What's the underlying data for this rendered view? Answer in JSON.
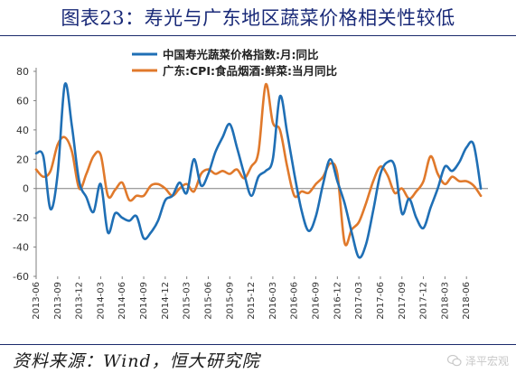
{
  "title": "图表23：寿光与广东地区蔬菜价格相关性较低",
  "source": "资料来源：Wind，恒大研究院",
  "watermark": {
    "text": "泽平宏观",
    "icon": "wechat-icon"
  },
  "chart_data": {
    "type": "line",
    "ylim": [
      -60,
      80
    ],
    "yticks": [
      80,
      60,
      40,
      20,
      0,
      -20,
      -40,
      -60
    ],
    "xlim": [
      "2013-06",
      "2018-09"
    ],
    "xticks": [
      "2013-06",
      "2013-09",
      "2013-12",
      "2014-03",
      "2014-06",
      "2014-09",
      "2014-12",
      "2015-03",
      "2015-06",
      "2015-09",
      "2015-12",
      "2016-03",
      "2016-06",
      "2016-09",
      "2016-12",
      "2017-03",
      "2017-06",
      "2017-09",
      "2017-12",
      "2018-03",
      "2018-06"
    ],
    "legend_position": "top-left",
    "series": [
      {
        "name": "中国寿光蔬菜价格指数:月:同比",
        "color": "#1f6fb5",
        "points": [
          [
            "2013-06",
            24
          ],
          [
            "2013-07",
            22
          ],
          [
            "2013-08",
            -14
          ],
          [
            "2013-09",
            10
          ],
          [
            "2013-10",
            71
          ],
          [
            "2013-11",
            42
          ],
          [
            "2013-12",
            5
          ],
          [
            "2014-01",
            -6
          ],
          [
            "2014-02",
            -16
          ],
          [
            "2014-03",
            3
          ],
          [
            "2014-04",
            -30
          ],
          [
            "2014-05",
            -17
          ],
          [
            "2014-06",
            -20
          ],
          [
            "2014-07",
            -22
          ],
          [
            "2014-08",
            -19
          ],
          [
            "2014-09",
            -34
          ],
          [
            "2014-10",
            -30
          ],
          [
            "2014-11",
            -22
          ],
          [
            "2014-12",
            -8
          ],
          [
            "2015-01",
            -5
          ],
          [
            "2015-02",
            4
          ],
          [
            "2015-03",
            -3
          ],
          [
            "2015-04",
            20
          ],
          [
            "2015-05",
            2
          ],
          [
            "2015-06",
            10
          ],
          [
            "2015-07",
            25
          ],
          [
            "2015-08",
            35
          ],
          [
            "2015-09",
            44
          ],
          [
            "2015-10",
            28
          ],
          [
            "2015-11",
            10
          ],
          [
            "2015-12",
            -5
          ],
          [
            "2016-01",
            8
          ],
          [
            "2016-02",
            12
          ],
          [
            "2016-03",
            20
          ],
          [
            "2016-04",
            63
          ],
          [
            "2016-05",
            38
          ],
          [
            "2016-06",
            10
          ],
          [
            "2016-07",
            -15
          ],
          [
            "2016-08",
            -29
          ],
          [
            "2016-09",
            -19
          ],
          [
            "2016-10",
            3
          ],
          [
            "2016-11",
            20
          ],
          [
            "2016-12",
            5
          ],
          [
            "2017-01",
            -10
          ],
          [
            "2017-02",
            -30
          ],
          [
            "2017-03",
            -47
          ],
          [
            "2017-04",
            -38
          ],
          [
            "2017-05",
            -15
          ],
          [
            "2017-06",
            10
          ],
          [
            "2017-07",
            18
          ],
          [
            "2017-08",
            15
          ],
          [
            "2017-09",
            -17
          ],
          [
            "2017-10",
            -7
          ],
          [
            "2017-11",
            -20
          ],
          [
            "2017-12",
            -27
          ],
          [
            "2018-01",
            -13
          ],
          [
            "2018-02",
            0
          ],
          [
            "2018-03",
            15
          ],
          [
            "2018-04",
            12
          ],
          [
            "2018-05",
            18
          ],
          [
            "2018-06",
            28
          ],
          [
            "2018-07",
            30
          ],
          [
            "2018-08",
            0
          ]
        ]
      },
      {
        "name": "广东:CPI:食品烟酒:鲜菜:当月同比",
        "color": "#e0792b",
        "points": [
          [
            "2013-06",
            13
          ],
          [
            "2013-07",
            8
          ],
          [
            "2013-08",
            12
          ],
          [
            "2013-09",
            30
          ],
          [
            "2013-10",
            35
          ],
          [
            "2013-11",
            25
          ],
          [
            "2013-12",
            0
          ],
          [
            "2014-01",
            10
          ],
          [
            "2014-02",
            22
          ],
          [
            "2014-03",
            23
          ],
          [
            "2014-04",
            -5
          ],
          [
            "2014-05",
            -1
          ],
          [
            "2014-06",
            4
          ],
          [
            "2014-07",
            -8
          ],
          [
            "2014-08",
            -5
          ],
          [
            "2014-09",
            -5
          ],
          [
            "2014-10",
            2
          ],
          [
            "2014-11",
            3
          ],
          [
            "2014-12",
            0
          ],
          [
            "2015-01",
            -5
          ],
          [
            "2015-02",
            0
          ],
          [
            "2015-03",
            3
          ],
          [
            "2015-04",
            -2
          ],
          [
            "2015-05",
            10
          ],
          [
            "2015-06",
            13
          ],
          [
            "2015-07",
            10
          ],
          [
            "2015-08",
            12
          ],
          [
            "2015-09",
            10
          ],
          [
            "2015-10",
            13
          ],
          [
            "2015-11",
            7
          ],
          [
            "2015-12",
            15
          ],
          [
            "2016-01",
            25
          ],
          [
            "2016-02",
            71
          ],
          [
            "2016-03",
            45
          ],
          [
            "2016-04",
            40
          ],
          [
            "2016-05",
            15
          ],
          [
            "2016-06",
            -5
          ],
          [
            "2016-07",
            -2
          ],
          [
            "2016-08",
            -3
          ],
          [
            "2016-09",
            3
          ],
          [
            "2016-10",
            8
          ],
          [
            "2016-11",
            17
          ],
          [
            "2016-12",
            10
          ],
          [
            "2017-01",
            -37
          ],
          [
            "2017-02",
            -28
          ],
          [
            "2017-03",
            -23
          ],
          [
            "2017-04",
            -10
          ],
          [
            "2017-05",
            5
          ],
          [
            "2017-06",
            15
          ],
          [
            "2017-07",
            9
          ],
          [
            "2017-08",
            -3
          ],
          [
            "2017-09",
            0
          ],
          [
            "2017-10",
            -7
          ],
          [
            "2017-11",
            -2
          ],
          [
            "2017-12",
            5
          ],
          [
            "2018-01",
            22
          ],
          [
            "2018-02",
            10
          ],
          [
            "2018-03",
            3
          ],
          [
            "2018-04",
            8
          ],
          [
            "2018-05",
            5
          ],
          [
            "2018-06",
            5
          ],
          [
            "2018-07",
            2
          ],
          [
            "2018-08",
            -5
          ]
        ]
      }
    ]
  }
}
